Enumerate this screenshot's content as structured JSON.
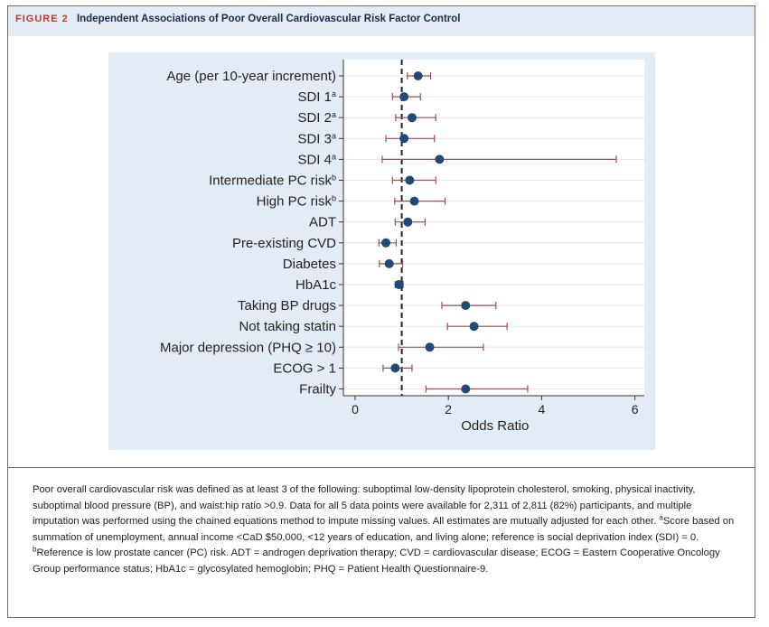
{
  "figure": {
    "label": "FIGURE 2",
    "title": "Independent Associations of Poor Overall Cardiovascular Risk Factor Control"
  },
  "colors": {
    "header_bg": "#e3ecf4",
    "label_red": "#c0392b",
    "ci_line": "#a04b52",
    "point": "#1f4b78"
  },
  "chart_data": {
    "type": "scatter",
    "subtype": "forest-plot",
    "xlabel": "Odds Ratio",
    "xlim": [
      -0.3,
      6.2
    ],
    "xticks": [
      0,
      2,
      4,
      6
    ],
    "reference_line": 1,
    "rows": [
      {
        "label": "Age (per 10-year increment)",
        "sup": "",
        "or": 1.35,
        "lo": 1.12,
        "hi": 1.62
      },
      {
        "label": "SDI 1",
        "sup": "a",
        "or": 1.05,
        "lo": 0.8,
        "hi": 1.4
      },
      {
        "label": "SDI 2",
        "sup": "a",
        "or": 1.22,
        "lo": 0.87,
        "hi": 1.73
      },
      {
        "label": "SDI 3",
        "sup": "a",
        "or": 1.05,
        "lo": 0.66,
        "hi": 1.7
      },
      {
        "label": "SDI 4",
        "sup": "a",
        "or": 1.81,
        "lo": 0.58,
        "hi": 5.6
      },
      {
        "label": "Intermediate PC risk",
        "sup": "b",
        "or": 1.17,
        "lo": 0.8,
        "hi": 1.73
      },
      {
        "label": "High PC risk",
        "sup": "b",
        "or": 1.27,
        "lo": 0.85,
        "hi": 1.93
      },
      {
        "label": "ADT",
        "sup": "",
        "or": 1.13,
        "lo": 0.86,
        "hi": 1.5
      },
      {
        "label": "Pre-existing CVD",
        "sup": "",
        "or": 0.66,
        "lo": 0.51,
        "hi": 0.88
      },
      {
        "label": "Diabetes",
        "sup": "",
        "or": 0.73,
        "lo": 0.52,
        "hi": 1.02
      },
      {
        "label": "HbA1c",
        "sup": "",
        "or": 0.94,
        "lo": 0.86,
        "hi": 1.03
      },
      {
        "label": "Taking BP drugs",
        "sup": "",
        "or": 2.37,
        "lo": 1.86,
        "hi": 3.02
      },
      {
        "label": "Not taking statin",
        "sup": "",
        "or": 2.55,
        "lo": 1.98,
        "hi": 3.26
      },
      {
        "label": "Major depression (PHQ ≥ 10)",
        "sup": "",
        "or": 1.6,
        "lo": 0.93,
        "hi": 2.75
      },
      {
        "label": "ECOG > 1",
        "sup": "",
        "or": 0.86,
        "lo": 0.6,
        "hi": 1.22
      },
      {
        "label": "Frailty",
        "sup": "",
        "or": 2.37,
        "lo": 1.52,
        "hi": 3.7
      }
    ]
  },
  "caption": {
    "p1": "Poor overall cardiovascular risk was defined as at least 3 of the following: suboptimal low-density lipoprotein cholesterol, smoking, physical inactivity, suboptimal blood pressure (BP), and waist:hip ratio >0.9. Data for all 5 data points were available for 2,311 of 2,811 (82%) participants, and multiple imputation was performed using the chained equations method to impute missing values. All estimates are mutually adjusted for each other. ",
    "sup_a": "a",
    "p2": "Score based on summation of unemployment, annual income <CaD $50,000, <12 years of education, and living alone; reference is social deprivation index (SDI) = 0. ",
    "sup_b": "b",
    "p3": "Reference is low prostate cancer (PC) risk. ADT = androgen deprivation therapy; CVD = cardiovascular disease; ECOG = Eastern Cooperative Oncology Group performance status; HbA1c = glycosylated hemoglobin; PHQ = Patient Health Questionnaire-9."
  }
}
